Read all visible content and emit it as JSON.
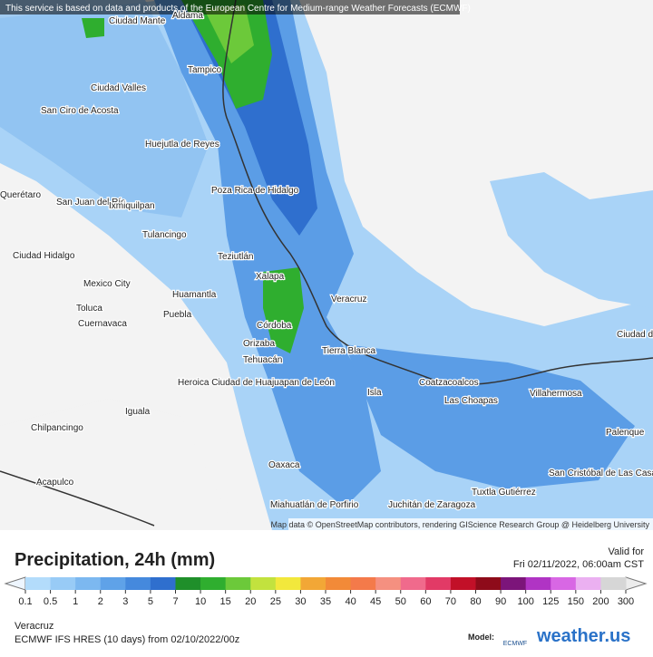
{
  "header": {
    "notice": "This service is based on data and products of the European Centre for Medium-range Weather Forecasts (ECMWF)"
  },
  "map": {
    "places": [
      "Ciudad Mante",
      "Aldama",
      "Tampico",
      "Ciudad Valles",
      "San Ciro de Acosta",
      "Huejutla de Reyes",
      "Poza Rica de Hidalgo",
      "Querétaro",
      "San Juan del Río",
      "Ixmiquilpan",
      "Tulancingo",
      "Ciudad Hidalgo",
      "Teziutlán",
      "Xalapa",
      "Mexico City",
      "Huamantla",
      "Toluca",
      "Puebla",
      "Cuernavaca",
      "Veracruz",
      "Córdoba",
      "Orizaba",
      "Tehuacán",
      "Tierra Blanca",
      "Heroica Ciudad de Huajuapan de León",
      "Iguala",
      "Chilpancingo",
      "Coatzacoalcos",
      "Las Choapas",
      "Villahermosa",
      "Isla",
      "Oaxaca",
      "Acapulco",
      "Tuxtla Gutiérrez",
      "San Cristóbal de Las Casas",
      "Palenque",
      "Juchitán de Zaragoza",
      "Miahuatlán de Porfirio",
      "Ciudad del Carmen"
    ],
    "attribution": "Map data © OpenStreetMap contributors, rendering GIScience Research Group @ Heidelberg University"
  },
  "legend": {
    "title": "Precipitation, 24h (mm)",
    "valid_label": "Valid for",
    "valid_time": "Fri 02/11/2022, 06:00am CST",
    "ticks": [
      0.1,
      0.5,
      1,
      2,
      3,
      5,
      7,
      10,
      15,
      20,
      25,
      30,
      35,
      40,
      45,
      50,
      60,
      70,
      80,
      90,
      100,
      125,
      150,
      200,
      300
    ],
    "colors": [
      "#b3dcfb",
      "#98cbf6",
      "#7cb8f0",
      "#5fa2e8",
      "#4589dd",
      "#2f6fce",
      "#1f8f2a",
      "#2fae2f",
      "#6cc93a",
      "#c2e23e",
      "#f2e83c",
      "#f2a736",
      "#f28a38",
      "#f47a4a",
      "#f59080",
      "#f06a8c",
      "#e23a66",
      "#c21028",
      "#8e0b1a",
      "#7c157a",
      "#b034c4",
      "#d867e4",
      "#ebb0f1",
      "#d6d6d6"
    ]
  },
  "footer": {
    "region": "Veracruz",
    "model_run": "ECMWF IFS HRES (10 days) from 02/10/2022/00z",
    "model_label": "Model:",
    "model_name": "ECMWF",
    "brand": "weather.us"
  }
}
